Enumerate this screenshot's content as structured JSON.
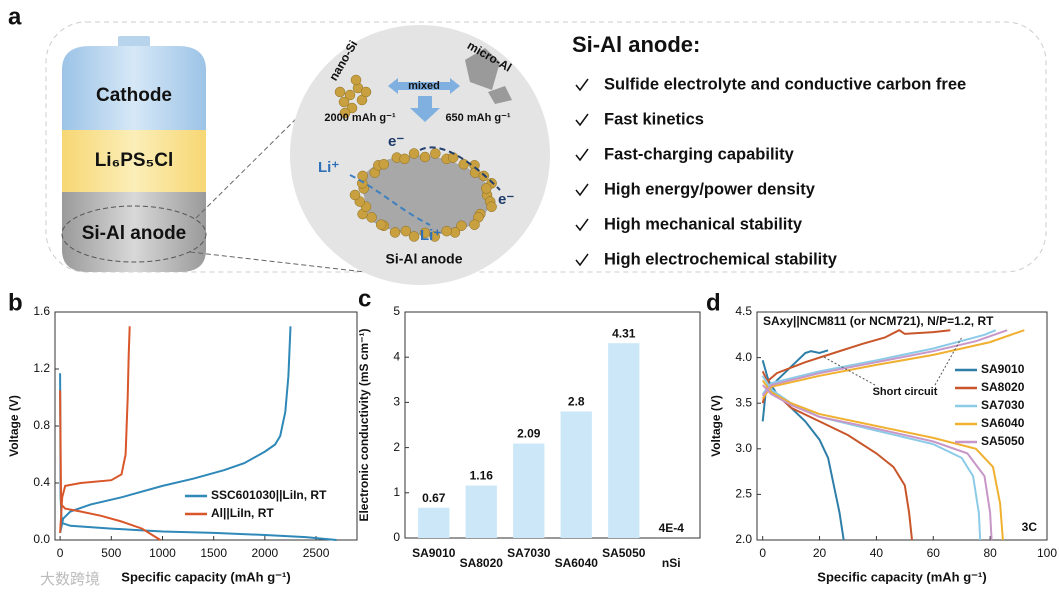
{
  "panel_a": {
    "label": "a",
    "battery": [
      "Cathode",
      "Li₆PS₅Cl",
      "Si-Al anode"
    ],
    "zoom": {
      "nano": "nano-Si",
      "micro": "micro-Al",
      "mixed": "mixed",
      "cap_si": "2000 mAh g⁻¹",
      "cap_al": "650 mAh g⁻¹",
      "electron": "e⁻",
      "electron2": "e⁻",
      "lithium": "Li⁺",
      "lithium2": "Li⁺",
      "caption": "Si-Al anode"
    },
    "heading": "Si-Al anode:",
    "features": [
      "Sulfide electrolyte and conductive carbon free",
      "Fast kinetics",
      "Fast-charging capability",
      "High energy/power density",
      "High mechanical stability",
      "High electrochemical stability"
    ]
  },
  "watermark": "大数跨境",
  "chart_data": [
    {
      "type": "line",
      "label": "b",
      "xlabel": "Specific capacity (mAh g⁻¹)",
      "ylabel": "Voltage (V)",
      "xlim": [
        -50,
        2900
      ],
      "xticks": [
        0,
        500,
        1000,
        1500,
        2000,
        2500
      ],
      "ylim": [
        0,
        1.6
      ],
      "yticks": [
        {
          "value": 0,
          "label": "0.0"
        },
        0.4,
        0.8,
        1.2,
        1.6
      ],
      "legend": "lower right",
      "series": [
        {
          "name": "SSC601030||LiIn, RT",
          "color": "#2e88b8",
          "x": [
            0,
            5,
            15,
            100,
            500,
            1000,
            1500,
            2000,
            2400,
            2700,
            null,
            0,
            30,
            100,
            300,
            600,
            1000,
            1300,
            1600,
            1800,
            2000,
            2100,
            2150,
            2200,
            2230,
            2250
          ],
          "values": [
            1.17,
            0.3,
            0.12,
            0.1,
            0.08,
            0.06,
            0.05,
            0.035,
            0.02,
            0,
            null,
            0.05,
            0.15,
            0.2,
            0.25,
            0.3,
            0.38,
            0.43,
            0.49,
            0.54,
            0.62,
            0.67,
            0.73,
            0.9,
            1.15,
            1.5
          ]
        },
        {
          "name": "Al||LiIn, RT",
          "color": "#d9562a",
          "x": [
            0,
            10,
            50,
            200,
            400,
            600,
            800,
            980,
            null,
            0,
            20,
            50,
            200,
            500,
            600,
            640,
            660,
            670,
            680
          ],
          "values": [
            1.05,
            0.25,
            0.22,
            0.2,
            0.17,
            0.13,
            0.08,
            0,
            null,
            0.05,
            0.3,
            0.38,
            0.4,
            0.42,
            0.46,
            0.6,
            1.0,
            1.3,
            1.5
          ]
        }
      ]
    },
    {
      "type": "bar",
      "label": "c",
      "ylabel": "Electronic conductivity (mS cm⁻¹)",
      "categories": [
        "SA9010",
        "SA8020",
        "SA7030",
        "SA6040",
        "SA5050",
        "nSi"
      ],
      "values": [
        0.67,
        1.16,
        2.09,
        2.8,
        4.31,
        0.0004
      ],
      "value_labels": [
        "0.67",
        "1.16",
        "2.09",
        "2.8",
        "4.31",
        "4E-4"
      ],
      "color": "#cce8f8",
      "ylim": [
        0,
        5
      ],
      "yticks": [
        0,
        1,
        2,
        3,
        4,
        5
      ]
    },
    {
      "type": "line",
      "label": "d",
      "xlabel": "Specific capacity (mAh g⁻¹)",
      "ylabel": "Voltage (V)",
      "title": "SAxy||NCM811 (or NCM721), N/P=1.2, RT",
      "annotation": "Short circuit",
      "rate": "3C",
      "xlim": [
        -2,
        100
      ],
      "xticks": [
        0,
        20,
        40,
        60,
        80,
        100
      ],
      "ylim": [
        2.0,
        4.5
      ],
      "yticks": [
        {
          "value": 2,
          "label": "2.0"
        },
        2.5,
        {
          "value": 3,
          "label": "3.0"
        },
        3.5,
        {
          "value": 4,
          "label": "4.0"
        },
        4.5
      ],
      "legend": "center right",
      "series": [
        {
          "name": "SA9010",
          "color": "#2e7fa8",
          "x": [
            0,
            2,
            5,
            10,
            15,
            20,
            23,
            25,
            27,
            28.5,
            null,
            0,
            1,
            5,
            10,
            15,
            17,
            20,
            23
          ],
          "values": [
            3.97,
            3.75,
            3.6,
            3.45,
            3.3,
            3.1,
            2.9,
            2.6,
            2.3,
            2.0,
            null,
            3.3,
            3.6,
            3.75,
            3.9,
            4.05,
            4.07,
            4.05,
            4.08
          ]
        },
        {
          "name": "SA8020",
          "color": "#c8562a",
          "x": [
            0,
            3,
            10,
            20,
            30,
            40,
            46,
            50,
            51.5,
            52.5,
            null,
            0,
            2,
            5,
            15,
            25,
            35,
            43,
            48,
            50,
            60,
            66
          ],
          "values": [
            3.85,
            3.65,
            3.45,
            3.3,
            3.15,
            2.95,
            2.8,
            2.6,
            2.3,
            2.0,
            null,
            3.5,
            3.75,
            3.83,
            3.95,
            4.05,
            4.15,
            4.22,
            4.3,
            4.26,
            4.28,
            4.3
          ]
        },
        {
          "name": "SA7030",
          "color": "#8ccbe8",
          "x": [
            0,
            3,
            10,
            20,
            40,
            60,
            70,
            74,
            76,
            76.5,
            null,
            0,
            3,
            20,
            40,
            60,
            78,
            82
          ],
          "values": [
            3.8,
            3.65,
            3.5,
            3.35,
            3.2,
            3.05,
            2.9,
            2.7,
            2.3,
            2.0,
            null,
            3.6,
            3.72,
            3.85,
            3.97,
            4.1,
            4.25,
            4.3
          ]
        },
        {
          "name": "SA6040",
          "color": "#f0b030",
          "x": [
            0,
            3,
            10,
            20,
            40,
            60,
            75,
            81,
            83.5,
            84.5,
            null,
            0,
            3,
            20,
            40,
            60,
            80,
            92
          ],
          "values": [
            3.75,
            3.62,
            3.5,
            3.38,
            3.25,
            3.12,
            3.0,
            2.8,
            2.4,
            2.0,
            null,
            3.55,
            3.68,
            3.8,
            3.92,
            4.03,
            4.17,
            4.3
          ]
        },
        {
          "name": "SA5050",
          "color": "#c897c8",
          "x": [
            0,
            3,
            10,
            20,
            40,
            60,
            72,
            78,
            80,
            80.5,
            null,
            0,
            3,
            20,
            40,
            60,
            75,
            86
          ],
          "values": [
            3.7,
            3.6,
            3.48,
            3.35,
            3.22,
            3.08,
            2.95,
            2.7,
            2.3,
            2.0,
            null,
            3.58,
            3.7,
            3.83,
            3.95,
            4.07,
            4.18,
            4.3
          ]
        }
      ]
    }
  ]
}
